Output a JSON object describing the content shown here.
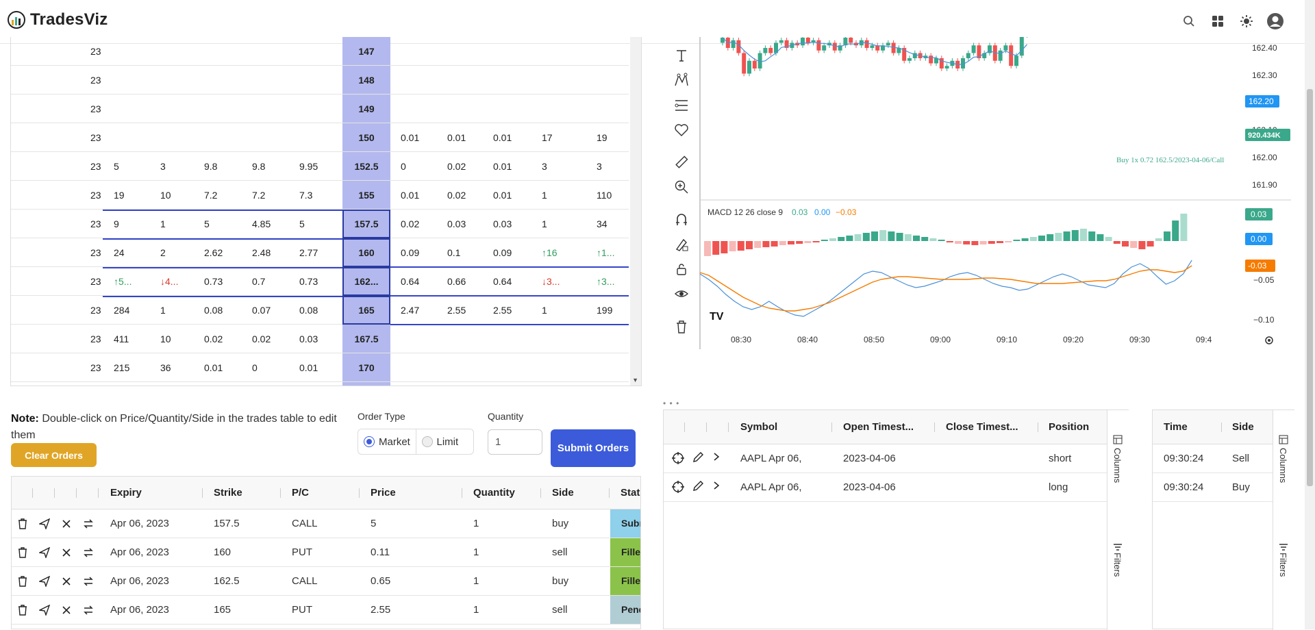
{
  "app": {
    "brand": "TradesViz"
  },
  "header_icons": [
    "search-icon",
    "grid-apps-icon",
    "theme-sun-icon",
    "account-icon"
  ],
  "option_chain": {
    "rows": [
      {
        "date": "23",
        "strike": "147",
        "calls": [
          "",
          "",
          "",
          "",
          ""
        ],
        "puts": [
          "",
          "",
          "",
          "",
          ""
        ]
      },
      {
        "date": "23",
        "strike": "148",
        "calls": [
          "",
          "",
          "",
          "",
          ""
        ],
        "puts": [
          "",
          "",
          "",
          "",
          ""
        ]
      },
      {
        "date": "23",
        "strike": "149",
        "calls": [
          "",
          "",
          "",
          "",
          ""
        ],
        "puts": [
          "",
          "",
          "",
          "",
          ""
        ]
      },
      {
        "date": "23",
        "strike": "150",
        "calls": [
          "",
          "",
          "",
          "",
          ""
        ],
        "puts": [
          "0.01",
          "0.01",
          "0.01",
          "17",
          "19"
        ]
      },
      {
        "date": "23",
        "strike": "152.5",
        "calls": [
          "5",
          "3",
          "9.8",
          "9.8",
          "9.95"
        ],
        "puts": [
          "0",
          "0.02",
          "0.01",
          "3",
          "3"
        ]
      },
      {
        "date": "23",
        "strike": "155",
        "calls": [
          "19",
          "10",
          "7.2",
          "7.2",
          "7.3"
        ],
        "puts": [
          "0.01",
          "0.02",
          "0.01",
          "1",
          "110"
        ]
      },
      {
        "date": "23",
        "strike": "157.5",
        "calls": [
          "9",
          "1",
          "5",
          "4.85",
          "5"
        ],
        "puts": [
          "0.02",
          "0.03",
          "0.03",
          "1",
          "34"
        ]
      },
      {
        "date": "23",
        "strike": "160",
        "calls": [
          "24",
          "2",
          "2.62",
          "2.48",
          "2.77"
        ],
        "puts": [
          "0.09",
          "0.1",
          "0.09",
          "↑16",
          "↑1..."
        ]
      },
      {
        "date": "23",
        "strike": "162...",
        "calls": [
          "↑5...",
          "↓4...",
          "0.73",
          "0.7",
          "0.73"
        ],
        "puts": [
          "0.64",
          "0.66",
          "0.64",
          "↓3...",
          "↑3..."
        ]
      },
      {
        "date": "23",
        "strike": "165",
        "calls": [
          "284",
          "1",
          "0.08",
          "0.07",
          "0.08"
        ],
        "puts": [
          "2.47",
          "2.55",
          "2.55",
          "1",
          "199"
        ]
      },
      {
        "date": "23",
        "strike": "167.5",
        "calls": [
          "411",
          "10",
          "0.02",
          "0.02",
          "0.03"
        ],
        "puts": [
          "",
          "",
          "",
          "",
          ""
        ]
      },
      {
        "date": "23",
        "strike": "170",
        "calls": [
          "215",
          "36",
          "0.01",
          "0",
          "0.01"
        ],
        "puts": [
          "",
          "",
          "",
          "",
          ""
        ]
      }
    ]
  },
  "chart": {
    "price_labels": [
      "162.40",
      "162.30",
      "162.20",
      "162.10",
      "162.00",
      "161.90"
    ],
    "current_price": "162.20",
    "volume_badge": "920.434K",
    "trade_annotation": "Buy 1x 0.72 162.5/2023-04-06/Call",
    "macd_label": "MACD 12 26 close 9",
    "macd_values": [
      "0.03",
      "0.00",
      "−0.03"
    ],
    "macd_axis": [
      "−0.05",
      "−0.10"
    ],
    "macd_badges": [
      "0.03",
      "0.00",
      "-0.03"
    ],
    "time_labels": [
      "08:30",
      "08:40",
      "08:50",
      "09:00",
      "09:10",
      "09:20",
      "09:30",
      "09:4"
    ],
    "colors": {
      "up": "#3aa88a",
      "down": "#ef5350",
      "macd": "#2196f3",
      "signal": "#f57c00"
    }
  },
  "order_entry": {
    "note_bold": "Note:",
    "note_text": "Double-click on Price/Quantity/Side in the trades table to edit them",
    "clear_label": "Clear Orders",
    "order_type_label": "Order Type",
    "market_label": "Market",
    "limit_label": "Limit",
    "quantity_label": "Quantity",
    "quantity_value": "1",
    "submit_label": "Submit Orders"
  },
  "orders": {
    "columns": [
      "Expiry",
      "Strike",
      "P/C",
      "Price",
      "Quantity",
      "Side",
      "Stat"
    ],
    "rows": [
      {
        "expiry": "Apr 06, 2023",
        "strike": "157.5",
        "pc": "CALL",
        "price": "5",
        "qty": "1",
        "side": "buy",
        "status": "Submitted",
        "status_color": "#8fd0ea"
      },
      {
        "expiry": "Apr 06, 2023",
        "strike": "160",
        "pc": "PUT",
        "price": "0.11",
        "qty": "1",
        "side": "sell",
        "status": "Filled",
        "status_color": "#8bc34a"
      },
      {
        "expiry": "Apr 06, 2023",
        "strike": "162.5",
        "pc": "CALL",
        "price": "0.65",
        "qty": "1",
        "side": "buy",
        "status": "Filled",
        "status_color": "#8bc34a"
      },
      {
        "expiry": "Apr 06, 2023",
        "strike": "165",
        "pc": "PUT",
        "price": "2.55",
        "qty": "1",
        "side": "sell",
        "status": "Pending",
        "status_color": "#b0cdd4"
      }
    ]
  },
  "trades": {
    "columns": [
      "Symbol",
      "Open Timest...",
      "Close Timest...",
      "Position"
    ],
    "rows": [
      {
        "symbol": "AAPL Apr 06,",
        "open": "2023-04-06",
        "close": "",
        "position": "short"
      },
      {
        "symbol": "AAPL Apr 06,",
        "open": "2023-04-06",
        "close": "",
        "position": "long"
      }
    ],
    "side_columns": "Columns",
    "side_filters": "Filters"
  },
  "executions": {
    "columns": [
      "Time",
      "Side"
    ],
    "rows": [
      {
        "time": "09:30:24",
        "side": "Sell"
      },
      {
        "time": "09:30:24",
        "side": "Buy"
      }
    ],
    "side_columns": "Columns",
    "side_filters": "Filters"
  }
}
